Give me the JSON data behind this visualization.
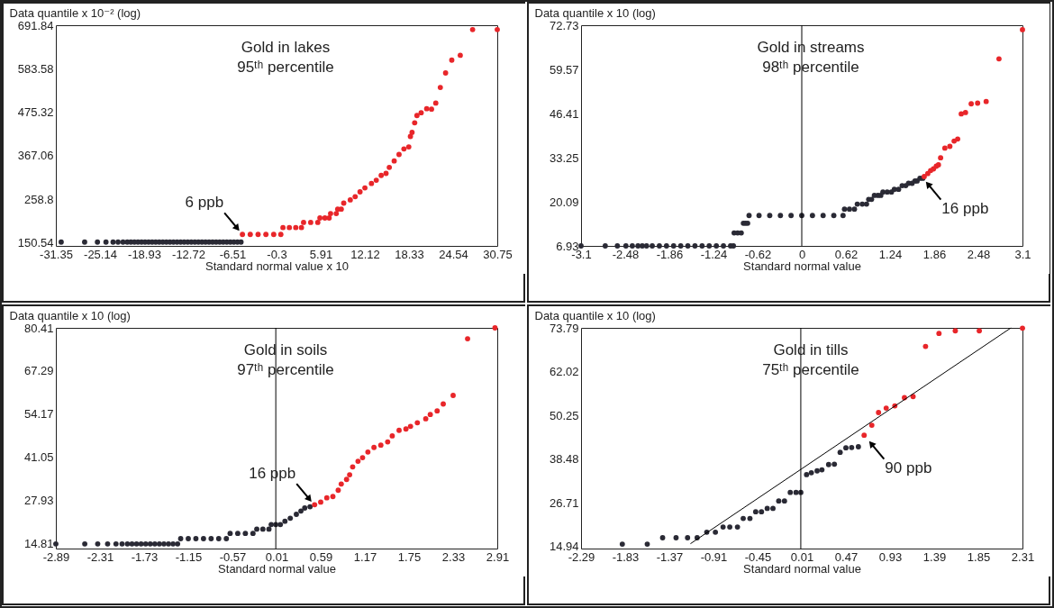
{
  "chart_data": [
    {
      "type": "scatter",
      "title": "Gold in lakes",
      "subtitle": "95ᵗʰ percentile",
      "xlabel": "Standard normal value x 10",
      "ylabel": "Data quantile x 10⁻² (log)",
      "marker": "circle",
      "xlim": [
        -31.35,
        30.75
      ],
      "ylim": [
        142.5,
        691.84
      ],
      "xticks": [
        -31.35,
        -25.14,
        -18.93,
        -12.72,
        -6.51,
        -0.3,
        5.91,
        12.12,
        18.33,
        24.54,
        30.75
      ],
      "yticks": [
        150.54,
        258.8,
        367.06,
        475.32,
        583.58,
        691.84
      ],
      "annotations": [
        {
          "text": "6 ppb",
          "x": -5.1,
          "y": 171
        }
      ],
      "series": [
        {
          "color": "#2a2a35",
          "x": [
            -30.6,
            -27.3,
            -25.5,
            -24.3,
            -23.3,
            -22.6,
            -21.9,
            -21.3,
            -20.8,
            -20.3,
            -19.8,
            -19.3,
            -18.8,
            -18.3,
            -17.8,
            -17.3,
            -16.8,
            -16.3,
            -15.8,
            -15.3,
            -14.8,
            -14.3,
            -13.8,
            -13.3,
            -12.8,
            -12.3,
            -11.8,
            -11.3,
            -10.8,
            -10.3,
            -9.8,
            -9.3,
            -8.8,
            -8.3,
            -7.8,
            -7.3,
            -6.8,
            -6.3,
            -5.8,
            -5.3
          ],
          "values": [
            152,
            152,
            152,
            152,
            152,
            152,
            152,
            152,
            152,
            152,
            152,
            152,
            152,
            152,
            152,
            152,
            152,
            152,
            152,
            152,
            152,
            152,
            152,
            152,
            152,
            152,
            152,
            152,
            152,
            152,
            152,
            152,
            152,
            152,
            152,
            152,
            152,
            152,
            152,
            152
          ]
        },
        {
          "color": "#e8262a",
          "x": [
            -5.1,
            -4,
            -2.9,
            -1.8,
            -0.7,
            0.3,
            0.6,
            1.5,
            2.4,
            3.2,
            3.5,
            4.5,
            5.5,
            5.8,
            6.5,
            7.1,
            7.3,
            8.1,
            8.3,
            8.8,
            9.15,
            10.07,
            10.76,
            11.44,
            12.13,
            13.05,
            13.73,
            14.42,
            15.1,
            15.56,
            16.25,
            16.93,
            17.62,
            18.3,
            18.53,
            18.76,
            19.13,
            19.45,
            20.04,
            20.82,
            21.5,
            22.1,
            22.74,
            23.48,
            24.35,
            25.54,
            27.28,
            30.75
          ],
          "values": [
            171,
            171,
            171,
            171,
            171,
            171,
            188,
            188,
            188,
            188,
            201,
            201,
            201,
            212,
            212,
            212,
            223,
            223,
            234,
            234,
            249,
            257,
            265,
            277,
            287,
            298,
            306,
            318,
            323,
            338,
            354,
            370,
            384,
            389,
            415,
            425,
            449,
            467,
            474,
            484,
            483,
            498,
            537,
            573,
            605,
            617,
            681,
            681
          ]
        }
      ]
    },
    {
      "type": "scatter",
      "title": "Gold in streams",
      "subtitle": "98ᵗʰ percentile",
      "xlabel": "Standard normal value",
      "ylabel": "Data quantile x 10 (log)",
      "marker": "circle",
      "xlim": [
        -3.1,
        3.1
      ],
      "ylim": [
        6.93,
        72.73
      ],
      "xticks": [
        -3.1,
        -2.48,
        -1.86,
        -1.24,
        -0.62,
        0,
        0.62,
        1.24,
        1.86,
        2.48,
        3.1
      ],
      "yticks": [
        6.93,
        20.09,
        33.25,
        46.41,
        59.57,
        72.73
      ],
      "ref_lines": [
        {
          "axis": "x",
          "value": 0
        }
      ],
      "annotations": [
        {
          "text": "16 ppb",
          "x": 1.7,
          "y": 27.2
        }
      ],
      "series": [
        {
          "color": "#2a2a35",
          "x": [
            -3.1,
            -2.76,
            -2.59,
            -2.47,
            -2.38,
            -2.3,
            -2.24,
            -2.18,
            -2.1,
            -2,
            -1.9,
            -1.8,
            -1.7,
            -1.6,
            -1.5,
            -1.4,
            -1.3,
            -1.2,
            -1.1,
            -1,
            -0.96,
            -0.95,
            -0.9,
            -0.85,
            -0.82,
            -0.79,
            -0.76,
            -0.74,
            -0.6,
            -0.45,
            -0.3,
            -0.15,
            0,
            0.15,
            0.3,
            0.45,
            0.58,
            0.6,
            0.67,
            0.74,
            0.78,
            0.85,
            0.91,
            0.94,
            0.98,
            1.02,
            1.07,
            1.11,
            1.14,
            1.2,
            1.26,
            1.3,
            1.36,
            1.41,
            1.46,
            1.5,
            1.55,
            1.59,
            1.62,
            1.66,
            1.7
          ],
          "values": [
            6.93,
            6.93,
            6.93,
            6.93,
            6.93,
            6.93,
            6.93,
            6.93,
            6.93,
            6.93,
            6.93,
            6.93,
            6.93,
            6.93,
            6.93,
            6.93,
            6.93,
            6.93,
            6.93,
            6.93,
            6.93,
            10.8,
            10.8,
            10.8,
            13.7,
            13.7,
            13.7,
            16,
            16,
            16,
            16,
            16,
            16,
            16,
            16,
            16,
            16,
            17.9,
            17.9,
            17.9,
            19.4,
            19.4,
            19.4,
            20.8,
            20.8,
            22,
            22,
            22,
            23,
            23,
            23,
            23.8,
            23.8,
            24.9,
            24.9,
            25.6,
            25.6,
            26.3,
            26.3,
            27.1,
            27.1
          ]
        },
        {
          "color": "#e8262a",
          "x": [
            1.72,
            1.77,
            1.81,
            1.85,
            1.89,
            1.92,
            1.95,
            2.01,
            2.08,
            2.14,
            2.19,
            2.24,
            2.3,
            2.38,
            2.47,
            2.59,
            2.77,
            3.1
          ],
          "values": [
            27.6,
            28.5,
            29.4,
            29.9,
            30.7,
            31.1,
            33.2,
            36.1,
            36.6,
            38.2,
            38.8,
            46.3,
            46.7,
            49.3,
            49.5,
            50,
            62.7,
            71.4
          ]
        }
      ]
    },
    {
      "type": "scatter",
      "title": "Gold in soils",
      "subtitle": "97ᵗʰ percentile",
      "xlabel": "Standard normal value",
      "ylabel": "Data quantile x 10 (log)",
      "marker": "circle",
      "xlim": [
        -2.89,
        2.91
      ],
      "ylim": [
        13.4,
        80.41
      ],
      "xticks": [
        -2.89,
        -2.31,
        -1.73,
        -1.15,
        -0.57,
        0.01,
        0.59,
        1.17,
        1.75,
        2.33,
        2.91
      ],
      "yticks": [
        14.81,
        27.93,
        41.05,
        54.17,
        67.29,
        80.41
      ],
      "ref_lines": [
        {
          "axis": "x",
          "value": 0
        }
      ],
      "annotations": [
        {
          "text": "16 ppb",
          "x": 0.51,
          "y": 26.5
        }
      ],
      "series": [
        {
          "color": "#2a2a35",
          "x": [
            -2.89,
            -2.51,
            -2.34,
            -2.21,
            -2.1,
            -2.02,
            -1.95,
            -1.89,
            -1.83,
            -1.77,
            -1.71,
            -1.65,
            -1.59,
            -1.53,
            -1.47,
            -1.41,
            -1.35,
            -1.29,
            -1.25,
            -1.15,
            -1.05,
            -0.95,
            -0.85,
            -0.75,
            -0.65,
            -0.6,
            -0.5,
            -0.4,
            -0.3,
            -0.25,
            -0.17,
            -0.09,
            -0.06,
            0,
            0.06,
            0.12,
            0.19,
            0.27,
            0.33,
            0.38,
            0.45
          ],
          "values": [
            14.81,
            14.81,
            14.81,
            14.81,
            14.81,
            14.81,
            14.81,
            14.81,
            14.81,
            14.81,
            14.81,
            14.81,
            14.81,
            14.81,
            14.81,
            14.81,
            14.81,
            14.81,
            16.4,
            16.4,
            16.4,
            16.4,
            16.4,
            16.4,
            16.4,
            18,
            18,
            18,
            18,
            19.3,
            19.3,
            19.3,
            20.7,
            20.7,
            20.7,
            21.7,
            22.6,
            23.8,
            24.8,
            25.7,
            26.1
          ]
        },
        {
          "color": "#e8262a",
          "x": [
            0.51,
            0.59,
            0.67,
            0.75,
            0.82,
            0.86,
            0.93,
            0.97,
            1.01,
            1.08,
            1.14,
            1.21,
            1.29,
            1.38,
            1.47,
            1.53,
            1.62,
            1.71,
            1.77,
            1.86,
            1.97,
            2.03,
            2.12,
            2.2,
            2.33,
            2.52,
            2.88
          ],
          "values": [
            26.7,
            27.5,
            28.8,
            29.2,
            31.1,
            33,
            34.4,
            35.8,
            38.2,
            39.9,
            41,
            42.7,
            44.1,
            44.8,
            45.8,
            47.6,
            49.3,
            49.7,
            50.5,
            51.6,
            52.8,
            54.1,
            55.2,
            57.3,
            59.9,
            77.1,
            80.4
          ]
        }
      ]
    },
    {
      "type": "scatter",
      "title": "Gold in tills",
      "subtitle": "75ᵗʰ percentile",
      "xlabel": "Standard normal value",
      "ylabel": "Data quantile x 10 (log)",
      "marker": "circle",
      "xlim": [
        -2.29,
        2.31
      ],
      "ylim": [
        14.4,
        73.79
      ],
      "xticks": [
        -2.29,
        -1.83,
        -1.37,
        -0.91,
        -0.45,
        0.01,
        0.47,
        0.93,
        1.39,
        1.85,
        2.31
      ],
      "yticks": [
        14.94,
        26.71,
        38.48,
        50.25,
        62.02,
        73.79
      ],
      "ref_lines": [
        {
          "axis": "x",
          "value": 0
        }
      ],
      "annotations": [
        {
          "text": "90 ppb",
          "x": 0.68,
          "y": 44.3
        }
      ],
      "series": [
        {
          "color": "#2a2a35",
          "x": [
            -1.86,
            -1.6,
            -1.44,
            -1.3,
            -1.18,
            -1.08,
            -0.98,
            -0.89,
            -0.81,
            -0.74,
            -0.66,
            -0.6,
            -0.53,
            -0.47,
            -0.41,
            -0.35,
            -0.29,
            -0.23,
            -0.17,
            -0.11,
            -0.05,
            0,
            0.06,
            0.11,
            0.17,
            0.22,
            0.29,
            0.35,
            0.41,
            0.47,
            0.53,
            0.6
          ],
          "values": [
            15.6,
            15.6,
            17.3,
            17.3,
            17.3,
            17.3,
            18.8,
            18.8,
            20.2,
            20.2,
            20.2,
            22.5,
            22.5,
            24.3,
            24.3,
            25.2,
            25.2,
            27.2,
            27.2,
            29.5,
            29.5,
            29.5,
            34.3,
            34.8,
            35.3,
            35.6,
            37,
            37.1,
            40.3,
            41.5,
            41.6,
            41.8
          ]
        },
        {
          "color": "#e8262a",
          "x": [
            0.66,
            0.74,
            0.81,
            0.89,
            0.98,
            1.08,
            1.17,
            1.3,
            1.44,
            1.61,
            1.86,
            2.31
          ],
          "values": [
            44.9,
            47.6,
            51,
            52.2,
            52.8,
            55,
            55.3,
            68.8,
            72.3,
            73,
            73,
            73.7
          ]
        },
        {
          "type": "line",
          "marker": "none",
          "color": "#000000",
          "x": [
            -1.15,
            2.19
          ],
          "values": [
            15.7,
            73.79
          ]
        }
      ]
    }
  ]
}
